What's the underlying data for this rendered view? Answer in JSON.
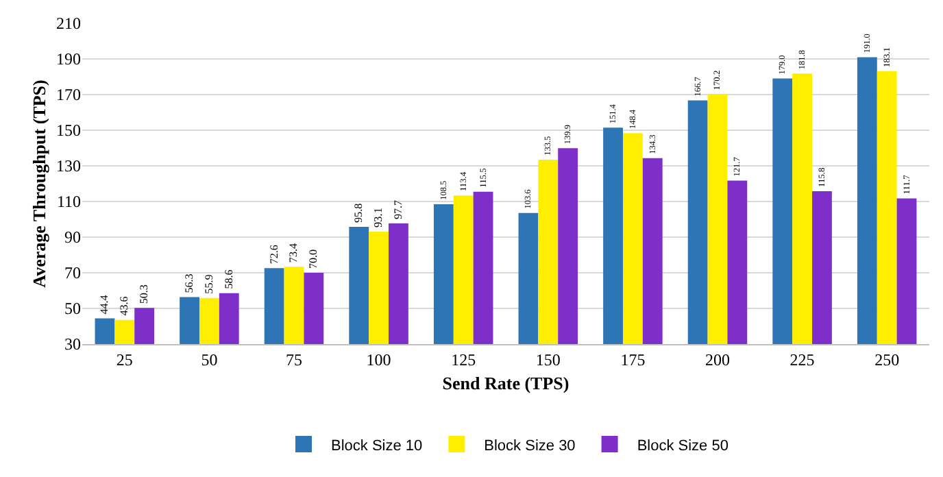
{
  "chart_data": {
    "type": "bar",
    "xlabel": "Send Rate (TPS)",
    "ylabel": "Average Throughput (TPS)",
    "categories": [
      "25",
      "50",
      "75",
      "100",
      "125",
      "150",
      "175",
      "200",
      "225",
      "250"
    ],
    "series": [
      {
        "name": "Block Size 10",
        "color": "#2e75b6",
        "values": [
          44.4,
          56.3,
          72.6,
          95.8,
          108.5,
          103.6,
          151.4,
          166.7,
          179.0,
          191.0
        ],
        "value_labels": [
          "44.4",
          "56.3",
          "72.6",
          "95.8",
          "108.5",
          "103.6",
          "151.4",
          "166.7",
          "179.0",
          "191.0"
        ]
      },
      {
        "name": "Block Size 30",
        "color": "#ffee00",
        "values": [
          43.6,
          55.9,
          73.4,
          93.1,
          113.4,
          133.5,
          148.4,
          170.2,
          181.8,
          183.1
        ],
        "value_labels": [
          "43.6",
          "55.9",
          "73.4",
          "93.1",
          "113.4",
          "133.5",
          "148.4",
          "170.2",
          "181.8",
          "183.1"
        ]
      },
      {
        "name": "Block Size 50",
        "color": "#7e2fc9",
        "values": [
          50.3,
          58.6,
          70.0,
          97.7,
          115.5,
          139.9,
          134.3,
          121.7,
          115.8,
          111.7
        ],
        "value_labels": [
          "50.3",
          "58.6",
          "70.0",
          "97.7",
          "115.5",
          "139.9",
          "134.3",
          "121.7",
          "115.8",
          "111.7"
        ]
      }
    ],
    "ylim": [
      30,
      210
    ],
    "yticks": [
      30,
      50,
      70,
      90,
      110,
      130,
      150,
      170,
      190,
      210
    ],
    "grid": "y",
    "legend": "bottom"
  }
}
